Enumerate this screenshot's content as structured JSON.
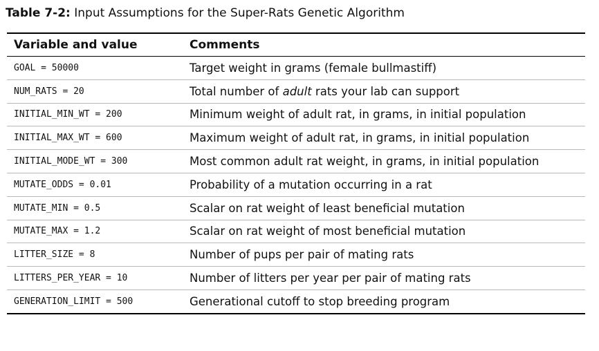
{
  "caption": {
    "label": "Table 7-2:",
    "text": "Input Assumptions for the Super-Rats Genetic Algorithm"
  },
  "table": {
    "headers": [
      "Variable and value",
      "Comments"
    ],
    "rows": [
      {
        "variable": "GOAL = 50000",
        "comment_before": "Target weight in grams (female bullmastiff)",
        "comment_em": "",
        "comment_after": ""
      },
      {
        "variable": "NUM_RATS = 20",
        "comment_before": "Total number of ",
        "comment_em": "adult",
        "comment_after": " rats your lab can support"
      },
      {
        "variable": "INITIAL_MIN_WT = 200",
        "comment_before": "Minimum weight of adult rat, in grams, in initial population",
        "comment_em": "",
        "comment_after": ""
      },
      {
        "variable": "INITIAL_MAX_WT = 600",
        "comment_before": "Maximum weight of adult rat, in grams, in initial population",
        "comment_em": "",
        "comment_after": ""
      },
      {
        "variable": "INITIAL_MODE_WT = 300",
        "comment_before": "Most common adult rat weight, in grams, in initial population",
        "comment_em": "",
        "comment_after": ""
      },
      {
        "variable": "MUTATE_ODDS = 0.01",
        "comment_before": "Probability of a mutation occurring in a rat",
        "comment_em": "",
        "comment_after": ""
      },
      {
        "variable": "MUTATE_MIN = 0.5",
        "comment_before": "Scalar on rat weight of least beneficial mutation",
        "comment_em": "",
        "comment_after": ""
      },
      {
        "variable": "MUTATE_MAX = 1.2",
        "comment_before": "Scalar on rat weight of most beneficial mutation",
        "comment_em": "",
        "comment_after": ""
      },
      {
        "variable": "LITTER_SIZE = 8",
        "comment_before": "Number of pups per pair of mating rats",
        "comment_em": "",
        "comment_after": ""
      },
      {
        "variable": "LITTERS_PER_YEAR = 10",
        "comment_before": "Number of litters per year per pair of mating rats",
        "comment_em": "",
        "comment_after": ""
      },
      {
        "variable": "GENERATION_LIMIT = 500",
        "comment_before": "Generational cutoff to stop breeding program",
        "comment_em": "",
        "comment_after": ""
      }
    ]
  }
}
